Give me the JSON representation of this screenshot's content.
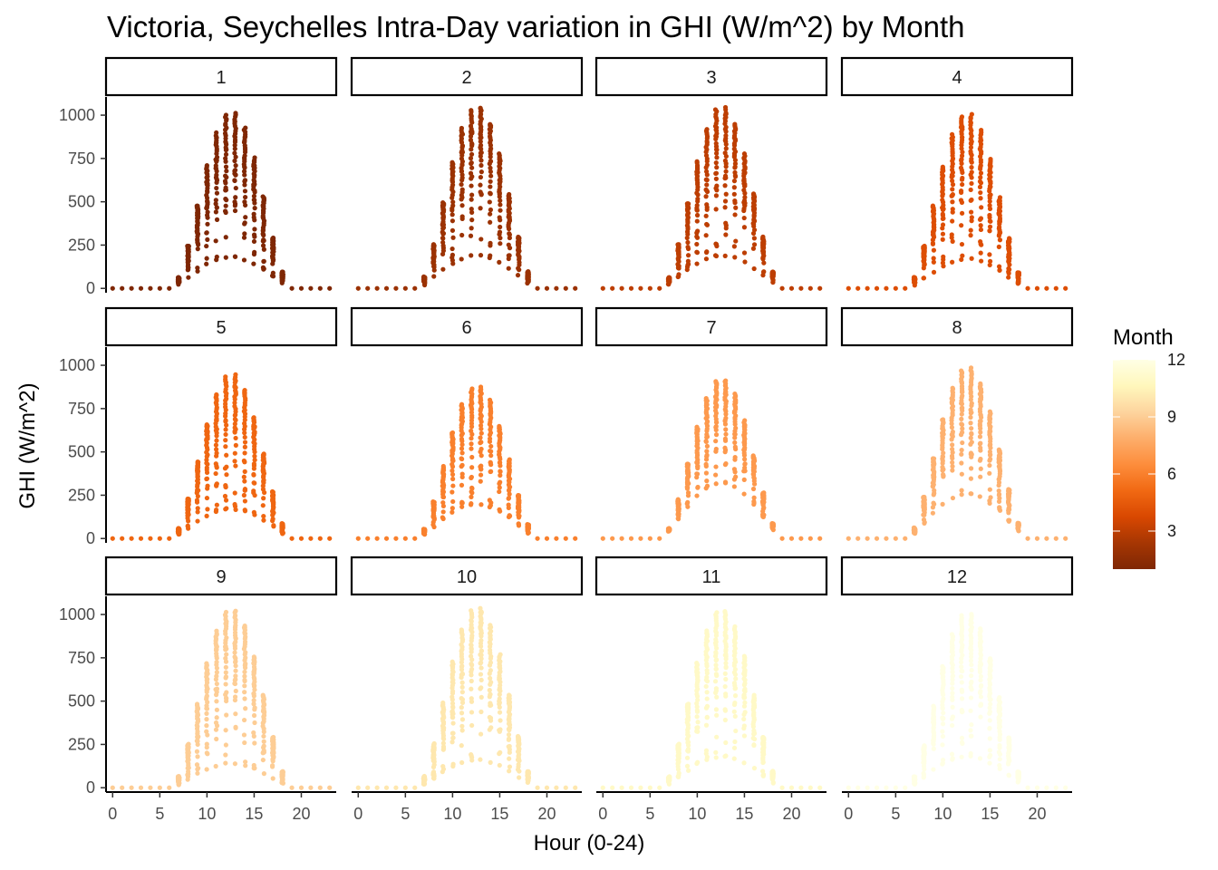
{
  "chart_data": {
    "type": "scatter",
    "title": "Victoria, Seychelles Intra-Day variation in GHI (W/m^2) by Month",
    "xlabel": "Hour (0-24)",
    "ylabel": "GHI (W/m^2)",
    "xlim": [
      -0.7,
      23.7
    ],
    "ylim": [
      -25,
      1105
    ],
    "x_ticks": [
      "0",
      "5",
      "10",
      "15",
      "20"
    ],
    "y_ticks": [
      "0",
      "250",
      "500",
      "750",
      "1000"
    ],
    "grid": false,
    "facet_by": "Month",
    "facets": [
      {
        "label": "1",
        "month": 1,
        "peak": 1020,
        "min_noon": 180,
        "sunrise_hour": 7,
        "sunset_hour": 18
      },
      {
        "label": "2",
        "month": 2,
        "peak": 1050,
        "min_noon": 190,
        "sunrise_hour": 7,
        "sunset_hour": 18
      },
      {
        "label": "3",
        "month": 3,
        "peak": 1050,
        "min_noon": 190,
        "sunrise_hour": 7,
        "sunset_hour": 18
      },
      {
        "label": "4",
        "month": 4,
        "peak": 1010,
        "min_noon": 170,
        "sunrise_hour": 7,
        "sunset_hour": 18
      },
      {
        "label": "5",
        "month": 5,
        "peak": 950,
        "min_noon": 170,
        "sunrise_hour": 7,
        "sunset_hour": 18
      },
      {
        "label": "6",
        "month": 6,
        "peak": 880,
        "min_noon": 200,
        "sunrise_hour": 7,
        "sunset_hour": 18
      },
      {
        "label": "7",
        "month": 7,
        "peak": 920,
        "min_noon": 320,
        "sunrise_hour": 7,
        "sunset_hour": 18
      },
      {
        "label": "8",
        "month": 8,
        "peak": 990,
        "min_noon": 260,
        "sunrise_hour": 7,
        "sunset_hour": 18
      },
      {
        "label": "9",
        "month": 9,
        "peak": 1030,
        "min_noon": 140,
        "sunrise_hour": 7,
        "sunset_hour": 18
      },
      {
        "label": "10",
        "month": 10,
        "peak": 1040,
        "min_noon": 160,
        "sunrise_hour": 7,
        "sunset_hour": 18
      },
      {
        "label": "11",
        "month": 11,
        "peak": 1030,
        "min_noon": 180,
        "sunrise_hour": 7,
        "sunset_hour": 18
      },
      {
        "label": "12",
        "month": 12,
        "peak": 1010,
        "min_noon": 180,
        "sunrise_hour": 7,
        "sunset_hour": 18
      }
    ],
    "legend": {
      "title": "Month",
      "position": "right",
      "ticks": [
        "3",
        "6",
        "9",
        "12"
      ],
      "range": [
        1,
        12
      ],
      "colors": [
        "#7f2704",
        "#a63603",
        "#d94801",
        "#f16913",
        "#fd8d3c",
        "#fdae6b",
        "#fdd49e",
        "#fff7bc",
        "#ffffe5"
      ]
    }
  }
}
